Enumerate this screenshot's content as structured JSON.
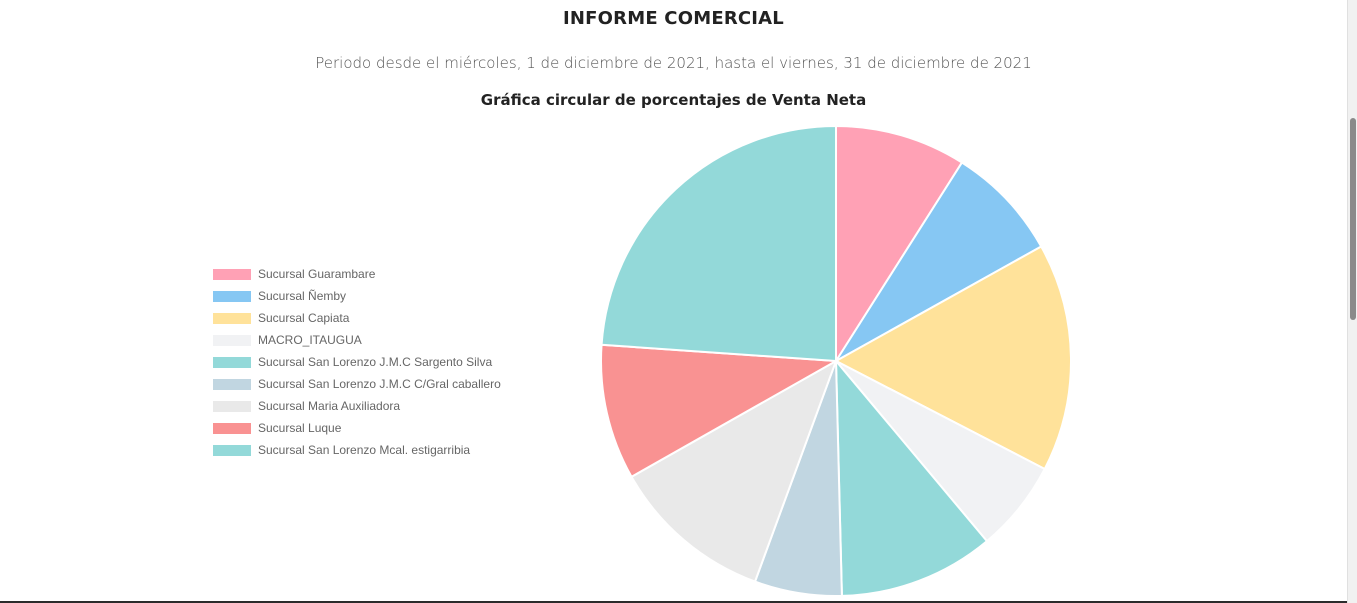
{
  "report": {
    "title": "INFORME COMERCIAL",
    "period": "Periodo desde el miércoles, 1 de diciembre de 2021, hasta el viernes, 31 de diciembre de 2021"
  },
  "chart_data": {
    "type": "pie",
    "title": "Gráfica circular de porcentajes de Venta Neta",
    "legend_position": "left",
    "categories": [
      "Sucursal Guarambare",
      "Sucursal Ñemby",
      "Sucursal Capiata",
      "MACRO_ITAUGUA",
      "Sucursal San Lorenzo J.M.C Sargento Silva",
      "Sucursal San Lorenzo J.M.C C/Gral caballero",
      "Sucursal Maria Auxiliadora",
      "Sucursal Luque",
      "Sucursal San Lorenzo Mcal. estigarribia"
    ],
    "values": [
      9.0,
      7.9,
      15.7,
      6.3,
      10.7,
      6.0,
      11.2,
      9.3,
      23.9
    ],
    "colors": [
      "#FFA1B5",
      "#86C7F3",
      "#FFE29A",
      "#F1F2F4",
      "#93D9D9",
      "#C1D6E1",
      "#E9E9E9",
      "#F99292",
      "#93D9D9"
    ]
  }
}
